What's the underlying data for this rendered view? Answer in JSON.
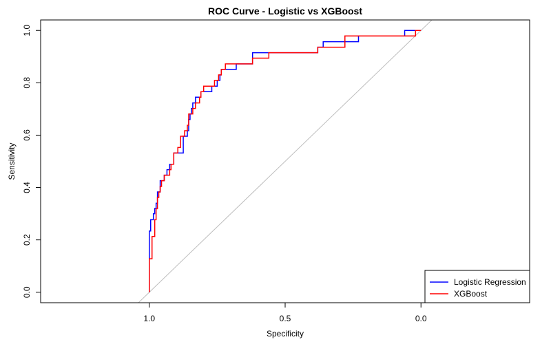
{
  "chart_data": {
    "type": "line",
    "title": "ROC Curve - Logistic vs XGBoost",
    "xlabel": "Specificity",
    "ylabel": "Sensitivity",
    "xlim": [
      1.4,
      -0.4
    ],
    "ylim": [
      -0.04,
      1.04
    ],
    "x_reversed": true,
    "grid": false,
    "legend_position": "bottom-right",
    "x_ticks": [
      1.0,
      0.5,
      0.0
    ],
    "x_tick_labels": [
      "1.0",
      "0.5",
      "0.0"
    ],
    "y_ticks": [
      0.0,
      0.2,
      0.4,
      0.6,
      0.8,
      1.0
    ],
    "y_tick_labels": [
      "0.0",
      "0.2",
      "0.4",
      "0.6",
      "0.8",
      "1.0"
    ],
    "reference_line": {
      "from": [
        1.04,
        -0.04
      ],
      "to": [
        -0.04,
        1.04
      ],
      "color": "#bebebe"
    },
    "series": [
      {
        "name": "Logistic Regression",
        "color": "#0000ff",
        "points": [
          [
            1.0,
            0.0
          ],
          [
            1.0,
            0.234
          ],
          [
            0.995,
            0.234
          ],
          [
            0.995,
            0.277
          ],
          [
            0.985,
            0.277
          ],
          [
            0.985,
            0.3
          ],
          [
            0.98,
            0.3
          ],
          [
            0.98,
            0.32
          ],
          [
            0.975,
            0.32
          ],
          [
            0.975,
            0.34
          ],
          [
            0.97,
            0.34
          ],
          [
            0.97,
            0.383
          ],
          [
            0.96,
            0.383
          ],
          [
            0.96,
            0.426
          ],
          [
            0.945,
            0.426
          ],
          [
            0.945,
            0.447
          ],
          [
            0.935,
            0.447
          ],
          [
            0.935,
            0.468
          ],
          [
            0.925,
            0.468
          ],
          [
            0.925,
            0.489
          ],
          [
            0.91,
            0.489
          ],
          [
            0.91,
            0.532
          ],
          [
            0.875,
            0.532
          ],
          [
            0.875,
            0.596
          ],
          [
            0.86,
            0.596
          ],
          [
            0.86,
            0.617
          ],
          [
            0.855,
            0.617
          ],
          [
            0.855,
            0.66
          ],
          [
            0.85,
            0.66
          ],
          [
            0.85,
            0.681
          ],
          [
            0.845,
            0.681
          ],
          [
            0.845,
            0.702
          ],
          [
            0.84,
            0.702
          ],
          [
            0.84,
            0.723
          ],
          [
            0.83,
            0.723
          ],
          [
            0.83,
            0.745
          ],
          [
            0.81,
            0.745
          ],
          [
            0.81,
            0.766
          ],
          [
            0.77,
            0.766
          ],
          [
            0.77,
            0.787
          ],
          [
            0.75,
            0.787
          ],
          [
            0.75,
            0.809
          ],
          [
            0.74,
            0.809
          ],
          [
            0.74,
            0.83
          ],
          [
            0.735,
            0.83
          ],
          [
            0.735,
            0.851
          ],
          [
            0.68,
            0.851
          ],
          [
            0.68,
            0.872
          ],
          [
            0.62,
            0.872
          ],
          [
            0.62,
            0.915
          ],
          [
            0.38,
            0.915
          ],
          [
            0.38,
            0.936
          ],
          [
            0.36,
            0.936
          ],
          [
            0.36,
            0.957
          ],
          [
            0.23,
            0.957
          ],
          [
            0.23,
            0.979
          ],
          [
            0.06,
            0.979
          ],
          [
            0.06,
            1.0
          ],
          [
            0.0,
            1.0
          ]
        ]
      },
      {
        "name": "XGBoost",
        "color": "#ff0000",
        "points": [
          [
            1.0,
            0.0
          ],
          [
            1.0,
            0.128
          ],
          [
            0.99,
            0.128
          ],
          [
            0.99,
            0.213
          ],
          [
            0.98,
            0.213
          ],
          [
            0.98,
            0.277
          ],
          [
            0.975,
            0.277
          ],
          [
            0.975,
            0.319
          ],
          [
            0.97,
            0.319
          ],
          [
            0.97,
            0.362
          ],
          [
            0.965,
            0.362
          ],
          [
            0.965,
            0.383
          ],
          [
            0.96,
            0.383
          ],
          [
            0.96,
            0.404
          ],
          [
            0.955,
            0.404
          ],
          [
            0.955,
            0.426
          ],
          [
            0.945,
            0.426
          ],
          [
            0.945,
            0.447
          ],
          [
            0.925,
            0.447
          ],
          [
            0.925,
            0.468
          ],
          [
            0.92,
            0.468
          ],
          [
            0.92,
            0.489
          ],
          [
            0.91,
            0.489
          ],
          [
            0.91,
            0.532
          ],
          [
            0.895,
            0.532
          ],
          [
            0.895,
            0.553
          ],
          [
            0.885,
            0.553
          ],
          [
            0.885,
            0.596
          ],
          [
            0.87,
            0.596
          ],
          [
            0.87,
            0.617
          ],
          [
            0.86,
            0.617
          ],
          [
            0.86,
            0.638
          ],
          [
            0.855,
            0.638
          ],
          [
            0.855,
            0.681
          ],
          [
            0.84,
            0.681
          ],
          [
            0.84,
            0.702
          ],
          [
            0.83,
            0.702
          ],
          [
            0.83,
            0.723
          ],
          [
            0.815,
            0.723
          ],
          [
            0.815,
            0.745
          ],
          [
            0.81,
            0.745
          ],
          [
            0.81,
            0.766
          ],
          [
            0.8,
            0.766
          ],
          [
            0.8,
            0.787
          ],
          [
            0.76,
            0.787
          ],
          [
            0.76,
            0.809
          ],
          [
            0.745,
            0.809
          ],
          [
            0.745,
            0.83
          ],
          [
            0.735,
            0.83
          ],
          [
            0.735,
            0.851
          ],
          [
            0.72,
            0.851
          ],
          [
            0.72,
            0.872
          ],
          [
            0.62,
            0.872
          ],
          [
            0.62,
            0.894
          ],
          [
            0.56,
            0.894
          ],
          [
            0.56,
            0.915
          ],
          [
            0.38,
            0.915
          ],
          [
            0.38,
            0.936
          ],
          [
            0.28,
            0.936
          ],
          [
            0.28,
            0.979
          ],
          [
            0.02,
            0.979
          ],
          [
            0.02,
            1.0
          ],
          [
            0.0,
            1.0
          ]
        ]
      }
    ]
  }
}
